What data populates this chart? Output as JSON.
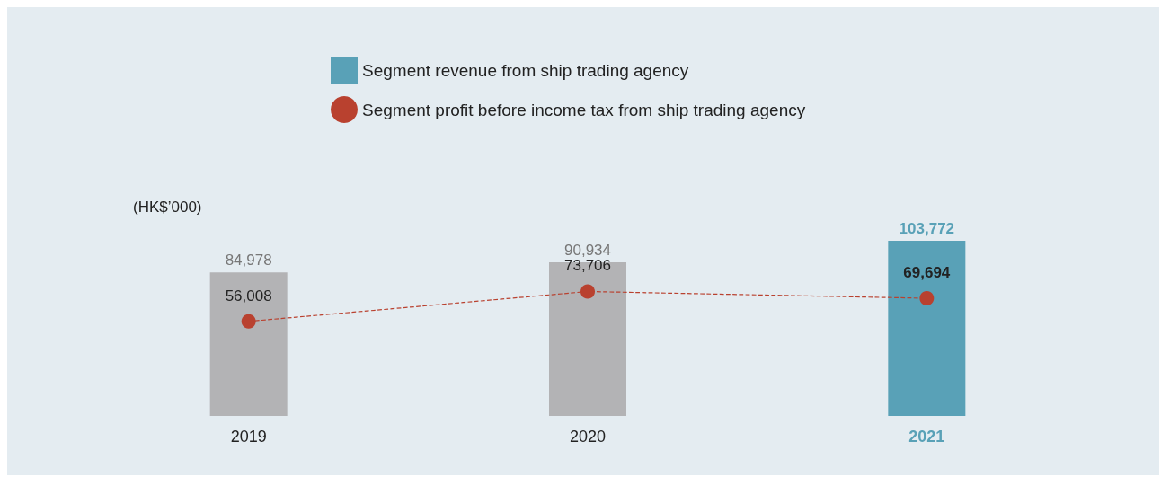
{
  "chart_data": {
    "type": "bar",
    "ylabel": "(HK$’000)",
    "categories": [
      "2019",
      "2020",
      "2021"
    ],
    "series": [
      {
        "name": "Segment revenue from ship trading agency",
        "values": [
          84978,
          90934,
          103772
        ],
        "value_labels": [
          "84,978",
          "90,934",
          "103,772"
        ],
        "colors": [
          "#b3b3b5",
          "#b3b3b5",
          "#59a1b7"
        ]
      },
      {
        "type": "line",
        "name": "Segment profit before income tax from ship trading agency",
        "color": "#b9412f",
        "values": [
          56008,
          73706,
          69694
        ],
        "value_labels": [
          "56,008",
          "73,706",
          "69,694"
        ],
        "line_style": "dashed",
        "marker": "circle"
      }
    ],
    "legend": "top"
  }
}
